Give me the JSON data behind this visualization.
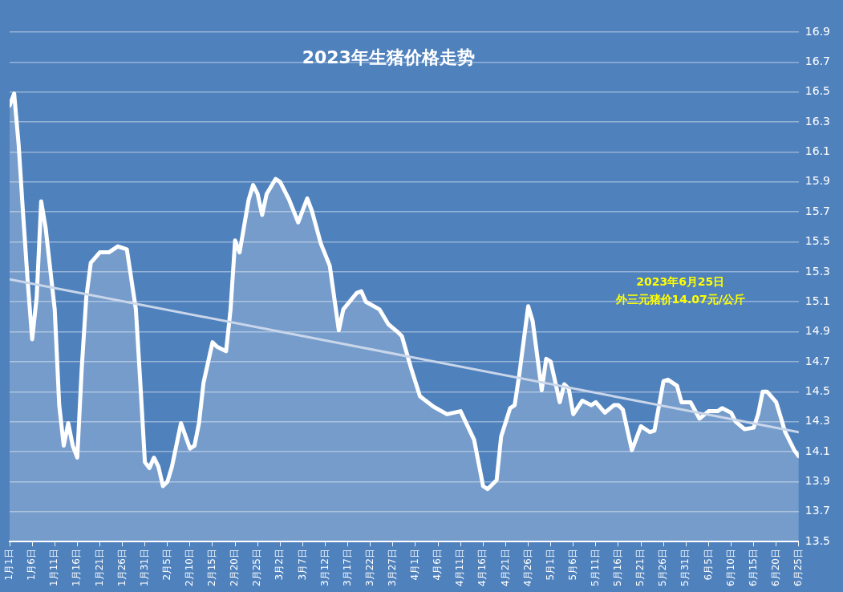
{
  "chart_data": {
    "type": "line",
    "title": "2023年生猪价格走势",
    "annotations": [
      "2023年6月25日",
      "外三元猪价14.07元/公斤"
    ],
    "series": [
      {
        "type": "area",
        "color": "#ffffff",
        "x": [
          "--01-01",
          "--01-02",
          "--01-03",
          "--01-04",
          "--01-05",
          "--01-06",
          "--01-07",
          "--01-08",
          "--01-09",
          "--01-11",
          "--01-12",
          "--01-13",
          "--01-14",
          "--01-15",
          "--01-16",
          "--01-17",
          "--01-18",
          "--01-19",
          "--01-21",
          "--01-23",
          "--01-25",
          "--01-27",
          "--01-29",
          "--01-30",
          "--01-31",
          "--02-01",
          "--02-02",
          "--02-03",
          "--02-04",
          "--02-05",
          "--02-06",
          "--02-08",
          "--02-10",
          "--02-11",
          "--02-12",
          "--02-13",
          "--02-15",
          "--02-16",
          "--02-18",
          "--02-19",
          "--02-20",
          "--02-21",
          "--02-23",
          "--02-24",
          "--02-25",
          "--02-26",
          "--02-27",
          "--03-01",
          "--03-02",
          "--03-04",
          "--03-06",
          "--03-08",
          "--03-09",
          "--03-11",
          "--03-13",
          "--03-15",
          "--03-16",
          "--03-19",
          "--03-20",
          "--03-21",
          "--03-24",
          "--03-26",
          "--03-28",
          "--03-29",
          "--03-31",
          "--04-02",
          "--04-05",
          "--04-08",
          "--04-11",
          "--04-14",
          "--04-16",
          "--04-17",
          "--04-19",
          "--04-20",
          "--04-22",
          "--04-23",
          "--04-24",
          "--04-26",
          "--04-27",
          "--04-29",
          "--04-30",
          "--05-01",
          "--05-03",
          "--05-04",
          "--05-05",
          "--05-06",
          "--05-08",
          "--05-10",
          "--05-11",
          "--05-13",
          "--05-15",
          "--05-16",
          "--05-17",
          "--05-19",
          "--05-21",
          "--05-23",
          "--05-24",
          "--05-26",
          "--05-27",
          "--05-29",
          "--05-30",
          "--06-01",
          "--06-03",
          "--06-05",
          "--06-07",
          "--06-08",
          "--06-10",
          "--06-11",
          "--06-13",
          "--06-15",
          "--06-16",
          "--06-17",
          "--06-18",
          "--06-20",
          "--06-21",
          "--06-22",
          "--06-24",
          "--06-25"
        ],
        "values": [
          16.41,
          16.49,
          16.15,
          15.68,
          15.24,
          14.85,
          15.13,
          15.77,
          15.59,
          15.05,
          14.41,
          14.14,
          14.29,
          14.14,
          14.06,
          14.66,
          15.13,
          15.36,
          15.43,
          15.43,
          15.47,
          15.45,
          15.05,
          14.55,
          14.03,
          13.99,
          14.06,
          14.0,
          13.87,
          13.9,
          14.0,
          14.29,
          14.12,
          14.14,
          14.29,
          14.56,
          14.83,
          14.8,
          14.77,
          15.05,
          15.51,
          15.43,
          15.78,
          15.88,
          15.82,
          15.68,
          15.82,
          15.92,
          15.9,
          15.78,
          15.63,
          15.79,
          15.71,
          15.49,
          15.34,
          14.91,
          15.05,
          15.16,
          15.17,
          15.1,
          15.05,
          14.95,
          14.9,
          14.87,
          14.66,
          14.47,
          14.4,
          14.35,
          14.37,
          14.18,
          13.87,
          13.85,
          13.91,
          14.2,
          14.39,
          14.41,
          14.61,
          15.07,
          14.97,
          14.51,
          14.72,
          14.7,
          14.43,
          14.55,
          14.52,
          14.35,
          14.44,
          14.41,
          14.43,
          14.36,
          14.41,
          14.41,
          14.38,
          14.11,
          14.27,
          14.23,
          14.24,
          14.57,
          14.58,
          14.54,
          14.43,
          14.43,
          14.32,
          14.37,
          14.37,
          14.39,
          14.36,
          14.3,
          14.25,
          14.26,
          14.35,
          14.5,
          14.5,
          14.43,
          14.33,
          14.23,
          14.11,
          14.07
        ]
      },
      {
        "color": "#c9d6ea",
        "x": [
          "--01-01",
          "--06-25"
        ],
        "values": [
          15.25,
          14.23
        ]
      }
    ],
    "xlim": [
      "--01-01",
      "--06-25"
    ],
    "xticks": [
      {
        "value": "--01-01",
        "label": "1月1日"
      },
      {
        "value": "--01-06",
        "label": "1月6日"
      },
      {
        "value": "--01-11",
        "label": "1月11日"
      },
      {
        "value": "--01-16",
        "label": "1月16日"
      },
      {
        "value": "--01-21",
        "label": "1月21日"
      },
      {
        "value": "--01-26",
        "label": "1月26日"
      },
      {
        "value": "--01-31",
        "label": "1月31日"
      },
      {
        "value": "--02-05",
        "label": "2月5日"
      },
      {
        "value": "--02-10",
        "label": "2月10日"
      },
      {
        "value": "--02-15",
        "label": "2月15日"
      },
      {
        "value": "--02-20",
        "label": "2月20日"
      },
      {
        "value": "--02-25",
        "label": "2月25日"
      },
      {
        "value": "--03-02",
        "label": "3月2日"
      },
      {
        "value": "--03-07",
        "label": "3月7日"
      },
      {
        "value": "--03-12",
        "label": "3月12日"
      },
      {
        "value": "--03-17",
        "label": "3月17日"
      },
      {
        "value": "--03-22",
        "label": "3月22日"
      },
      {
        "value": "--03-27",
        "label": "3月27日"
      },
      {
        "value": "--04-01",
        "label": "4月1日"
      },
      {
        "value": "--04-06",
        "label": "4月6日"
      },
      {
        "value": "--04-11",
        "label": "4月11日"
      },
      {
        "value": "--04-16",
        "label": "4月16日"
      },
      {
        "value": "--04-21",
        "label": "4月21日"
      },
      {
        "value": "--04-26",
        "label": "4月26日"
      },
      {
        "value": "--05-01",
        "label": "5月1日"
      },
      {
        "value": "--05-06",
        "label": "5月6日"
      },
      {
        "value": "--05-11",
        "label": "5月11日"
      },
      {
        "value": "--05-16",
        "label": "5月16日"
      },
      {
        "value": "--05-21",
        "label": "5月21日"
      },
      {
        "value": "--05-26",
        "label": "5月26日"
      },
      {
        "value": "--05-31",
        "label": "5月31日"
      },
      {
        "value": "--06-05",
        "label": "6月5日"
      },
      {
        "value": "--06-10",
        "label": "6月10日"
      },
      {
        "value": "--06-15",
        "label": "6月15日"
      },
      {
        "value": "--06-20",
        "label": "6月20日"
      },
      {
        "value": "--06-25",
        "label": "6月25日"
      }
    ],
    "ylim": [
      13.5,
      16.9
    ],
    "yticks": [
      13.5,
      13.7,
      13.9,
      14.1,
      14.3,
      14.5,
      14.7,
      14.9,
      15.1,
      15.3,
      15.5,
      15.7,
      15.9,
      16.1,
      16.3,
      16.5,
      16.7,
      16.9
    ],
    "grid": "y",
    "legend": false,
    "marker": "none",
    "line_style": "solid"
  }
}
